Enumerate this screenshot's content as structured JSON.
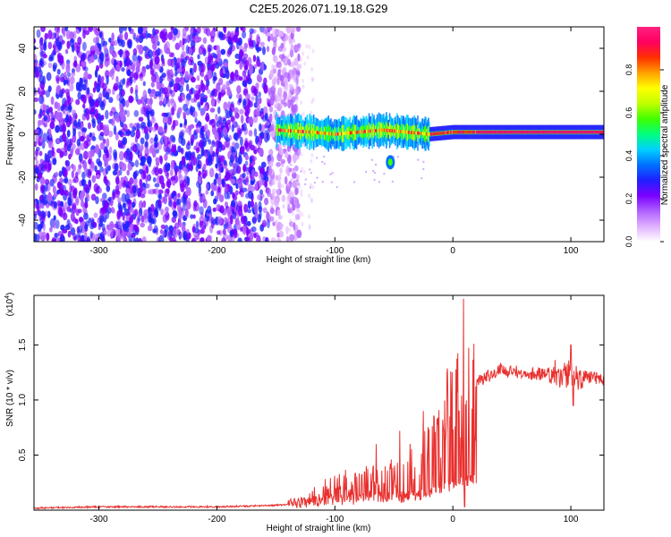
{
  "page_title": "C2E5.2026.071.19.18.G29",
  "chart_data": [
    {
      "type": "heatmap",
      "title": "C2E5.2026.071.19.18.G29",
      "xlabel": "Height of straight line (km)",
      "ylabel": "Frequency (Hz)",
      "xlim": [
        -355,
        128
      ],
      "ylim": [
        -50,
        50
      ],
      "x_ticks": [
        -300,
        -200,
        -100,
        0,
        100
      ],
      "y_ticks": [
        -40,
        -20,
        0,
        20,
        40
      ],
      "x_tick_labels": [
        "-300",
        "-200",
        "-100",
        "0",
        "100"
      ],
      "y_tick_labels": [
        "-40",
        "-20",
        "0",
        "20",
        "40"
      ],
      "colorbar": {
        "label": "Normalized spectral amplitude",
        "range": [
          0,
          1
        ],
        "ticks": [
          0.0,
          0.2,
          0.4,
          0.6,
          0.8
        ],
        "tick_labels": [
          "0.0",
          "0.2",
          "0.4",
          "0.6",
          "0.8"
        ],
        "colors": [
          "#ffffff",
          "#e0b0ff",
          "#b060ff",
          "#7a00ff",
          "#2020ff",
          "#0070ff",
          "#00d0ff",
          "#00ff80",
          "#40ff00",
          "#c0ff00",
          "#ffff00",
          "#ffa000",
          "#ff3000",
          "#ff0060",
          "#ff2080"
        ]
      },
      "features": {
        "noise_region_x": [
          -355,
          -145
        ],
        "signal_track_start_x": -150,
        "signal_track_center_freq": [
          [
            -150,
            2
          ],
          [
            -120,
            1
          ],
          [
            -100,
            0
          ],
          [
            -80,
            1
          ],
          [
            -60,
            2
          ],
          [
            -40,
            1
          ],
          [
            -20,
            0
          ],
          [
            0,
            1
          ],
          [
            50,
            1
          ],
          [
            100,
            1
          ],
          [
            128,
            1
          ]
        ],
        "secondary_blob": {
          "x": -53,
          "freq": -13
        }
      }
    },
    {
      "type": "line",
      "xlabel": "Height of straight line (km)",
      "ylabel": "SNR (10 * v/v)",
      "y_multiplier_label": "(x10",
      "y_multiplier_exp": "4",
      "xlim": [
        -355,
        128
      ],
      "ylim": [
        0,
        1.95
      ],
      "x_ticks": [
        -300,
        -200,
        -100,
        0,
        100
      ],
      "y_ticks": [
        0.5,
        1.0,
        1.5
      ],
      "x_tick_labels": [
        "-300",
        "-200",
        "-100",
        "0",
        "100"
      ],
      "y_tick_labels": [
        "0.5",
        "1.0",
        "1.5"
      ],
      "series": [
        {
          "name": "SNR",
          "color": "#e8302e",
          "envelope": {
            "x": [
              -355,
              -300,
              -250,
              -200,
              -160,
              -140,
              -120,
              -100,
              -80,
              -60,
              -40,
              -20,
              -5,
              8,
              20,
              30,
              40,
              60,
              80,
              100,
              110,
              128
            ],
            "y": [
              0.02,
              0.03,
              0.03,
              0.03,
              0.04,
              0.05,
              0.12,
              0.22,
              0.24,
              0.27,
              0.35,
              0.5,
              0.8,
              1.05,
              1.15,
              1.22,
              1.28,
              1.25,
              1.23,
              1.22,
              1.21,
              1.19
            ]
          },
          "spikes": [
            {
              "x": 9,
              "y": 1.92
            },
            {
              "x": 10,
              "y": 0.03
            },
            {
              "x": 100,
              "y": 1.5
            },
            {
              "x": 102,
              "y": 0.95
            },
            {
              "x": -65,
              "y": 0.6
            },
            {
              "x": -45,
              "y": 0.72
            },
            {
              "x": -25,
              "y": 0.9
            }
          ]
        }
      ]
    }
  ]
}
